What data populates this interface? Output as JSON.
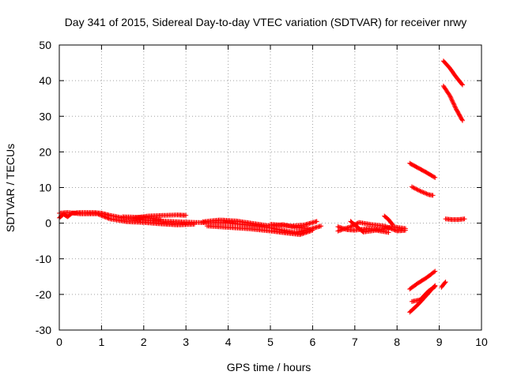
{
  "chart_data": {
    "type": "scatter",
    "title": "Day 341 of 2015, Sidereal Day-to-day VTEC variation (SDTVAR) for receiver nrwy",
    "xlabel": "GPS time / hours",
    "ylabel": "SDTVAR / TECUs",
    "xlim": [
      0,
      10
    ],
    "ylim": [
      -30,
      50
    ],
    "xticks": [
      "0",
      "1",
      "2",
      "3",
      "4",
      "5",
      "6",
      "7",
      "8",
      "9",
      "10"
    ],
    "yticks": [
      "-30",
      "-20",
      "-10",
      "0",
      "10",
      "20",
      "30",
      "40",
      "50"
    ],
    "grid": true,
    "marker": "+",
    "color": "#ff0000",
    "series_tracks": [
      [
        [
          0.0,
          1.5
        ],
        [
          0.1,
          2.5
        ],
        [
          0.2,
          1.8
        ],
        [
          0.3,
          2.8
        ],
        [
          0.5,
          3.0
        ],
        [
          0.8,
          3.0
        ],
        [
          1.0,
          2.8
        ],
        [
          1.2,
          2.2
        ],
        [
          1.5,
          1.5
        ],
        [
          1.8,
          1.2
        ],
        [
          2.0,
          0.9
        ],
        [
          2.3,
          0.7
        ],
        [
          2.6,
          0.5
        ],
        [
          3.0,
          0.3
        ],
        [
          3.5,
          0.1
        ],
        [
          4.0,
          0.0
        ],
        [
          4.5,
          -0.6
        ],
        [
          5.0,
          -1.3
        ],
        [
          5.3,
          -2.0
        ],
        [
          5.6,
          -2.6
        ],
        [
          5.9,
          -1.8
        ],
        [
          6.2,
          -0.8
        ]
      ],
      [
        [
          0.0,
          2.8
        ],
        [
          0.2,
          3.0
        ],
        [
          0.5,
          2.6
        ],
        [
          0.9,
          2.6
        ],
        [
          1.2,
          1.2
        ],
        [
          1.6,
          0.4
        ],
        [
          2.0,
          0.2
        ],
        [
          2.4,
          -0.2
        ],
        [
          2.8,
          -0.5
        ],
        [
          3.2,
          -0.3
        ]
      ],
      [
        [
          1.8,
          1.5
        ],
        [
          2.1,
          2.0
        ],
        [
          2.5,
          2.2
        ],
        [
          2.8,
          2.3
        ],
        [
          3.0,
          2.2
        ]
      ],
      [
        [
          1.5,
          1.8
        ],
        [
          2.0,
          1.6
        ],
        [
          2.4,
          1.0
        ]
      ],
      [
        [
          3.4,
          0.4
        ],
        [
          3.8,
          0.9
        ],
        [
          4.2,
          0.6
        ],
        [
          4.6,
          -0.1
        ],
        [
          5.0,
          -0.8
        ],
        [
          5.3,
          -0.4
        ],
        [
          5.6,
          -1.2
        ],
        [
          5.9,
          -1.5
        ]
      ],
      [
        [
          3.5,
          -0.8
        ],
        [
          4.0,
          -1.2
        ],
        [
          4.5,
          -1.6
        ],
        [
          5.0,
          -2.2
        ],
        [
          5.4,
          -2.8
        ],
        [
          5.7,
          -3.2
        ],
        [
          6.0,
          -2.0
        ]
      ],
      [
        [
          5.0,
          -0.3
        ],
        [
          5.5,
          -0.8
        ],
        [
          5.8,
          -0.5
        ],
        [
          6.1,
          0.5
        ]
      ],
      [
        [
          6.6,
          -1.0
        ],
        [
          6.8,
          -1.8
        ],
        [
          7.0,
          -2.0
        ],
        [
          7.3,
          -1.5
        ],
        [
          7.6,
          -1.8
        ],
        [
          7.9,
          -1.0
        ],
        [
          8.2,
          -1.5
        ]
      ],
      [
        [
          6.6,
          -2.2
        ],
        [
          6.9,
          -1.0
        ],
        [
          7.1,
          0.2
        ],
        [
          7.4,
          -0.4
        ],
        [
          7.7,
          -0.8
        ],
        [
          8.0,
          -2.2
        ],
        [
          8.2,
          -2.0
        ]
      ],
      [
        [
          6.9,
          0.5
        ],
        [
          7.0,
          -0.5
        ],
        [
          7.2,
          -2.5
        ],
        [
          7.5,
          -2.0
        ],
        [
          7.8,
          -2.6
        ]
      ],
      [
        [
          7.7,
          2.0
        ],
        [
          7.8,
          1.0
        ],
        [
          7.9,
          -0.5
        ]
      ],
      [
        [
          8.3,
          16.8
        ],
        [
          8.5,
          15.5
        ],
        [
          8.7,
          14.2
        ],
        [
          8.9,
          12.8
        ]
      ],
      [
        [
          8.35,
          10.2
        ],
        [
          8.55,
          9.0
        ],
        [
          8.75,
          8.0
        ],
        [
          8.85,
          7.8
        ]
      ],
      [
        [
          8.3,
          -18.5
        ],
        [
          8.5,
          -16.8
        ],
        [
          8.7,
          -15.3
        ],
        [
          8.9,
          -13.5
        ]
      ],
      [
        [
          8.3,
          -25.0
        ],
        [
          8.5,
          -22.8
        ],
        [
          8.7,
          -20.2
        ],
        [
          8.9,
          -17.5
        ]
      ],
      [
        [
          8.35,
          -22.0
        ],
        [
          8.55,
          -21.5
        ],
        [
          8.75,
          -19.0
        ],
        [
          8.9,
          -17.8
        ]
      ],
      [
        [
          9.05,
          -18.0
        ],
        [
          9.1,
          -17.2
        ],
        [
          9.15,
          -16.5
        ]
      ],
      [
        [
          9.1,
          45.5
        ],
        [
          9.25,
          43.5
        ],
        [
          9.4,
          41.0
        ],
        [
          9.55,
          38.8
        ]
      ],
      [
        [
          9.1,
          38.5
        ],
        [
          9.25,
          35.8
        ],
        [
          9.4,
          32.0
        ],
        [
          9.55,
          28.8
        ]
      ],
      [
        [
          9.15,
          1.2
        ],
        [
          9.3,
          1.0
        ],
        [
          9.45,
          1.0
        ],
        [
          9.6,
          1.2
        ]
      ]
    ]
  }
}
